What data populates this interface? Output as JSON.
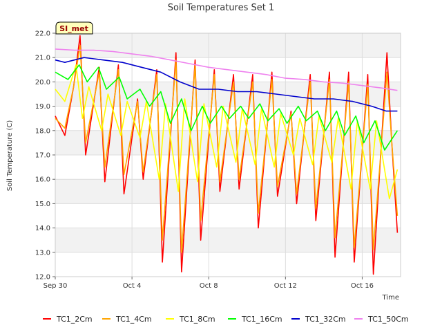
{
  "chart_data": {
    "type": "line",
    "title": "Soil Temperatures Set 1",
    "xlabel": "Time",
    "ylabel": "Soil Temperature (C)",
    "site_tag": "SI_met",
    "xlim": [
      "2025-09-30",
      "2025-10-18"
    ],
    "ylim": [
      12.0,
      22.0
    ],
    "x_ticks": [
      {
        "date": "2025-09-30",
        "label": "Sep 30"
      },
      {
        "date": "2025-10-04",
        "label": "Oct 4"
      },
      {
        "date": "2025-10-08",
        "label": "Oct 8"
      },
      {
        "date": "2025-10-12",
        "label": "Oct 12"
      },
      {
        "date": "2025-10-16",
        "label": "Oct 16"
      }
    ],
    "y_ticks": [
      "12.0",
      "13.0",
      "14.0",
      "15.0",
      "16.0",
      "17.0",
      "18.0",
      "19.0",
      "20.0",
      "21.0",
      "22.0"
    ],
    "grid": true,
    "legend": "bottom",
    "series": [
      {
        "name": "TC1_2Cm",
        "color": "#ff0000",
        "x": [
          "2025-09-30 00:00",
          "2025-09-30 12:00",
          "2025-09-30 23:00",
          "2025-10-01 07:00",
          "2025-10-01 14:00",
          "2025-10-02 07:00",
          "2025-10-02 14:00",
          "2025-10-03 07:00",
          "2025-10-03 14:00",
          "2025-10-04 07:00",
          "2025-10-04 14:00",
          "2025-10-05 07:00",
          "2025-10-05 14:00",
          "2025-10-06 07:00",
          "2025-10-06 14:00",
          "2025-10-07 07:00",
          "2025-10-07 14:00",
          "2025-10-08 07:00",
          "2025-10-08 14:00",
          "2025-10-09 07:00",
          "2025-10-09 14:00",
          "2025-10-10 07:00",
          "2025-10-10 14:00",
          "2025-10-11 07:00",
          "2025-10-11 14:00",
          "2025-10-12 07:00",
          "2025-10-12 14:00",
          "2025-10-13 07:00",
          "2025-10-13 14:00",
          "2025-10-14 07:00",
          "2025-10-14 14:00",
          "2025-10-15 07:00",
          "2025-10-15 14:00",
          "2025-10-16 07:00",
          "2025-10-16 14:00",
          "2025-10-17 07:00",
          "2025-10-17 13:00",
          "2025-10-17 20:00"
        ],
        "y": [
          18.6,
          17.8,
          19.8,
          21.9,
          17.0,
          20.6,
          15.9,
          20.7,
          15.4,
          19.3,
          16.0,
          20.5,
          12.6,
          21.2,
          12.2,
          20.9,
          13.5,
          20.5,
          15.5,
          20.3,
          15.6,
          20.3,
          14.0,
          20.4,
          15.3,
          18.8,
          15.0,
          20.3,
          14.3,
          20.4,
          12.8,
          20.4,
          12.6,
          20.3,
          12.1,
          21.2,
          17.5,
          13.8
        ]
      },
      {
        "name": "TC1_4Cm",
        "color": "#ffa500",
        "x": [
          "2025-09-30 00:00",
          "2025-09-30 12:00",
          "2025-09-30 23:00",
          "2025-10-01 07:00",
          "2025-10-01 14:00",
          "2025-10-02 07:00",
          "2025-10-02 14:00",
          "2025-10-03 07:00",
          "2025-10-03 14:00",
          "2025-10-04 07:00",
          "2025-10-04 14:00",
          "2025-10-05 07:00",
          "2025-10-05 14:00",
          "2025-10-06 07:00",
          "2025-10-06 14:00",
          "2025-10-07 07:00",
          "2025-10-07 14:00",
          "2025-10-08 07:00",
          "2025-10-08 14:00",
          "2025-10-09 07:00",
          "2025-10-09 14:00",
          "2025-10-10 07:00",
          "2025-10-10 14:00",
          "2025-10-11 07:00",
          "2025-10-11 14:00",
          "2025-10-12 07:00",
          "2025-10-12 14:00",
          "2025-10-13 07:00",
          "2025-10-13 14:00",
          "2025-10-14 07:00",
          "2025-10-14 14:00",
          "2025-10-15 07:00",
          "2025-10-15 14:00",
          "2025-10-16 07:00",
          "2025-10-16 14:00",
          "2025-10-17 07:00",
          "2025-10-17 13:00",
          "2025-10-17 20:00"
        ],
        "y": [
          18.5,
          18.1,
          19.8,
          21.5,
          17.5,
          20.4,
          16.5,
          20.5,
          16.2,
          19.2,
          16.3,
          20.3,
          13.5,
          20.9,
          13.0,
          20.7,
          14.3,
          20.3,
          15.9,
          20.0,
          16.0,
          20.0,
          14.6,
          20.1,
          15.7,
          18.7,
          15.4,
          20.0,
          14.8,
          20.1,
          13.6,
          20.0,
          13.2,
          19.9,
          13.1,
          20.4,
          17.5,
          14.5
        ]
      },
      {
        "name": "TC1_8Cm",
        "color": "#ffff00",
        "x": [
          "2025-09-30 00:00",
          "2025-09-30 12:00",
          "2025-10-01 02:00",
          "2025-10-01 10:00",
          "2025-10-01 18:00",
          "2025-10-02 10:00",
          "2025-10-02 18:00",
          "2025-10-03 10:00",
          "2025-10-03 18:00",
          "2025-10-04 10:00",
          "2025-10-04 18:00",
          "2025-10-05 10:00",
          "2025-10-05 18:00",
          "2025-10-06 10:00",
          "2025-10-06 18:00",
          "2025-10-07 10:00",
          "2025-10-07 18:00",
          "2025-10-08 10:00",
          "2025-10-08 18:00",
          "2025-10-09 10:00",
          "2025-10-09 18:00",
          "2025-10-10 10:00",
          "2025-10-10 18:00",
          "2025-10-11 10:00",
          "2025-10-11 18:00",
          "2025-10-12 10:00",
          "2025-10-12 18:00",
          "2025-10-13 10:00",
          "2025-10-13 18:00",
          "2025-10-14 10:00",
          "2025-10-14 18:00",
          "2025-10-15 10:00",
          "2025-10-15 18:00",
          "2025-10-16 10:00",
          "2025-10-16 18:00",
          "2025-10-17 10:00",
          "2025-10-17 20:00"
        ],
        "y": [
          19.7,
          19.2,
          20.7,
          18.5,
          19.8,
          18.0,
          19.5,
          17.8,
          19.2,
          17.7,
          19.2,
          16.0,
          19.1,
          15.5,
          19.3,
          15.9,
          19.1,
          16.5,
          19.0,
          16.7,
          18.9,
          16.6,
          18.9,
          16.5,
          18.7,
          17.0,
          18.5,
          16.6,
          18.6,
          16.7,
          18.5,
          15.6,
          18.4,
          15.6,
          18.4,
          15.2,
          16.4
        ]
      },
      {
        "name": "TC1_16Cm",
        "color": "#00ff00",
        "x": [
          "2025-09-30 00:00",
          "2025-09-30 16:00",
          "2025-10-01 06:00",
          "2025-10-01 16:00",
          "2025-10-02 06:00",
          "2025-10-02 16:00",
          "2025-10-03 08:00",
          "2025-10-03 18:00",
          "2025-10-04 10:00",
          "2025-10-04 22:00",
          "2025-10-05 12:00",
          "2025-10-06 00:00",
          "2025-10-06 14:00",
          "2025-10-07 02:00",
          "2025-10-07 16:00",
          "2025-10-08 02:00",
          "2025-10-08 16:00",
          "2025-10-09 02:00",
          "2025-10-09 16:00",
          "2025-10-10 02:00",
          "2025-10-10 16:00",
          "2025-10-11 02:00",
          "2025-10-11 16:00",
          "2025-10-12 02:00",
          "2025-10-12 16:00",
          "2025-10-13 02:00",
          "2025-10-13 16:00",
          "2025-10-14 02:00",
          "2025-10-14 16:00",
          "2025-10-15 02:00",
          "2025-10-15 16:00",
          "2025-10-16 02:00",
          "2025-10-16 16:00",
          "2025-10-17 04:00",
          "2025-10-17 20:00"
        ],
        "y": [
          20.4,
          20.1,
          20.7,
          20.0,
          20.6,
          19.7,
          20.2,
          19.3,
          19.7,
          19.0,
          19.6,
          18.3,
          19.3,
          18.0,
          19.0,
          18.3,
          19.0,
          18.5,
          19.0,
          18.5,
          19.1,
          18.4,
          18.9,
          18.3,
          19.0,
          18.4,
          18.8,
          18.0,
          18.8,
          17.8,
          18.6,
          17.5,
          18.4,
          17.2,
          18.0
        ]
      },
      {
        "name": "TC1_32Cm",
        "color": "#0000cc",
        "x": [
          "2025-09-30 00:00",
          "2025-09-30 12:00",
          "2025-10-01 12:00",
          "2025-10-02 12:00",
          "2025-10-03 12:00",
          "2025-10-04 12:00",
          "2025-10-05 12:00",
          "2025-10-06 12:00",
          "2025-10-07 12:00",
          "2025-10-08 12:00",
          "2025-10-09 12:00",
          "2025-10-10 12:00",
          "2025-10-11 12:00",
          "2025-10-12 12:00",
          "2025-10-13 12:00",
          "2025-10-14 12:00",
          "2025-10-15 12:00",
          "2025-10-16 12:00",
          "2025-10-17 06:00",
          "2025-10-17 20:00"
        ],
        "y": [
          20.9,
          20.8,
          21.0,
          20.9,
          20.8,
          20.6,
          20.4,
          20.0,
          19.7,
          19.7,
          19.6,
          19.6,
          19.5,
          19.4,
          19.3,
          19.3,
          19.2,
          19.0,
          18.8,
          18.8
        ]
      },
      {
        "name": "TC1_50Cm",
        "color": "#ee82ee",
        "x": [
          "2025-09-30 00:00",
          "2025-10-01 00:00",
          "2025-10-02 00:00",
          "2025-10-03 00:00",
          "2025-10-04 00:00",
          "2025-10-05 00:00",
          "2025-10-06 00:00",
          "2025-10-07 00:00",
          "2025-10-08 00:00",
          "2025-10-09 00:00",
          "2025-10-10 00:00",
          "2025-10-11 00:00",
          "2025-10-12 00:00",
          "2025-10-13 00:00",
          "2025-10-14 00:00",
          "2025-10-15 00:00",
          "2025-10-16 00:00",
          "2025-10-17 00:00",
          "2025-10-17 20:00"
        ],
        "y": [
          21.35,
          21.3,
          21.3,
          21.25,
          21.15,
          21.05,
          20.9,
          20.75,
          20.6,
          20.5,
          20.4,
          20.3,
          20.15,
          20.1,
          20.0,
          19.95,
          19.85,
          19.75,
          19.65
        ]
      }
    ]
  }
}
